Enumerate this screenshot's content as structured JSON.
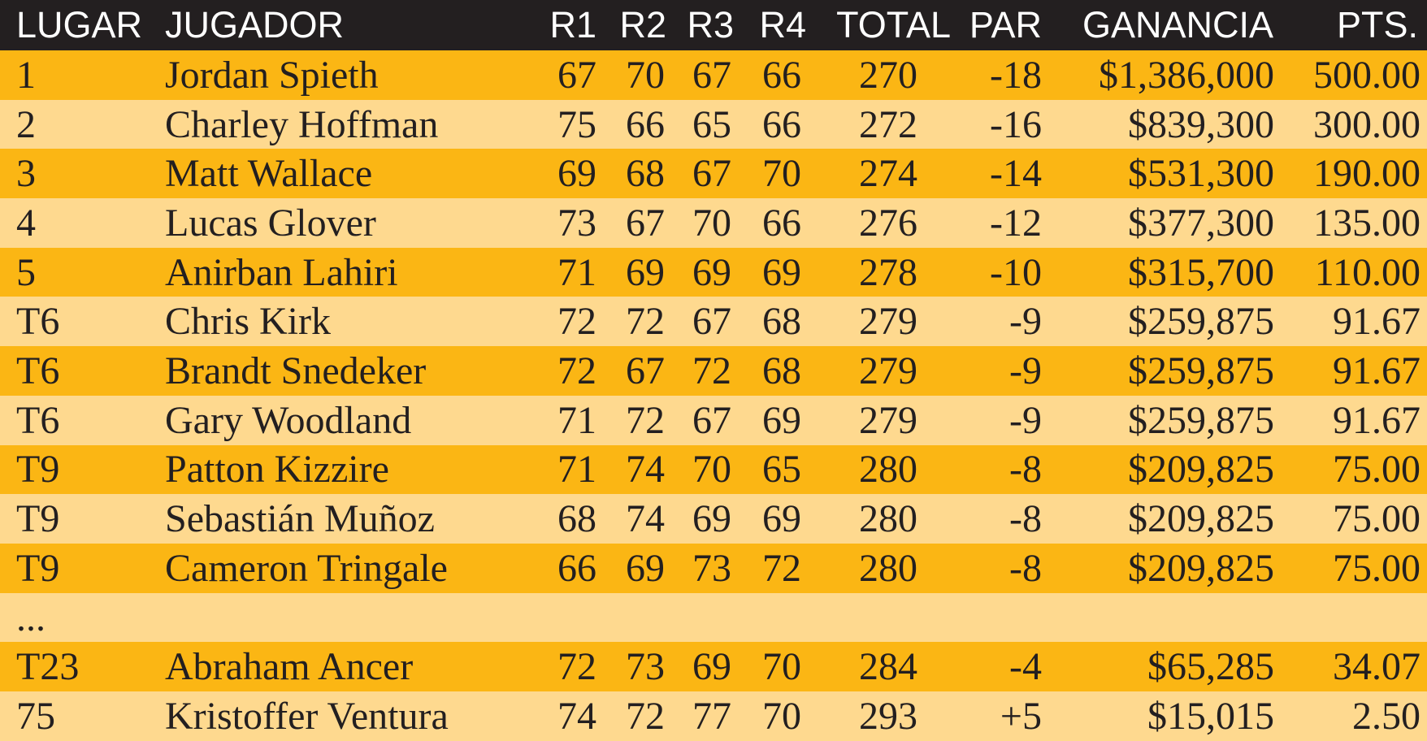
{
  "table": {
    "header": [
      "LUGAR",
      "JUGADOR",
      "R1",
      "R2",
      "R3",
      "R4",
      "TOTAL",
      "PAR",
      "GANANCIA",
      "PTS."
    ],
    "rows": [
      [
        "1",
        "Jordan Spieth",
        "67",
        "70",
        "67",
        "66",
        "270",
        "-18",
        "$1,386,000",
        "500.00"
      ],
      [
        "2",
        "Charley Hoffman",
        "75",
        "66",
        "65",
        "66",
        "272",
        "-16",
        "$839,300",
        "300.00"
      ],
      [
        "3",
        "Matt Wallace",
        "69",
        "68",
        "67",
        "70",
        "274",
        "-14",
        "$531,300",
        "190.00"
      ],
      [
        "4",
        "Lucas Glover",
        "73",
        "67",
        "70",
        "66",
        "276",
        "-12",
        "$377,300",
        "135.00"
      ],
      [
        "5",
        "Anirban Lahiri",
        "71",
        "69",
        "69",
        "69",
        "278",
        "-10",
        "$315,700",
        "110.00"
      ],
      [
        "T6",
        "Chris Kirk",
        "72",
        "72",
        "67",
        "68",
        "279",
        "-9",
        "$259,875",
        "91.67"
      ],
      [
        "T6",
        "Brandt Snedeker",
        "72",
        "67",
        "72",
        "68",
        "279",
        "-9",
        "$259,875",
        "91.67"
      ],
      [
        "T6",
        "Gary Woodland",
        "71",
        "72",
        "67",
        "69",
        "279",
        "-9",
        "$259,875",
        "91.67"
      ],
      [
        "T9",
        "Patton Kizzire",
        "71",
        "74",
        "70",
        "65",
        "280",
        "-8",
        "$209,825",
        "75.00"
      ],
      [
        "T9",
        "Sebastián Muñoz",
        "68",
        "74",
        "69",
        "69",
        "280",
        "-8",
        "$209,825",
        "75.00"
      ],
      [
        "T9",
        "Cameron Tringale",
        "66",
        "69",
        "73",
        "72",
        "280",
        "-8",
        "$209,825",
        "75.00"
      ],
      [
        "..."
      ],
      [
        "T23",
        "Abraham Ancer",
        "72",
        "73",
        "69",
        "70",
        "284",
        "-4",
        "$65,285",
        "34.07"
      ],
      [
        "75",
        "Kristoffer Ventura",
        "74",
        "72",
        "77",
        "70",
        "293",
        "+5",
        "$15,015",
        "2.50"
      ]
    ]
  }
}
